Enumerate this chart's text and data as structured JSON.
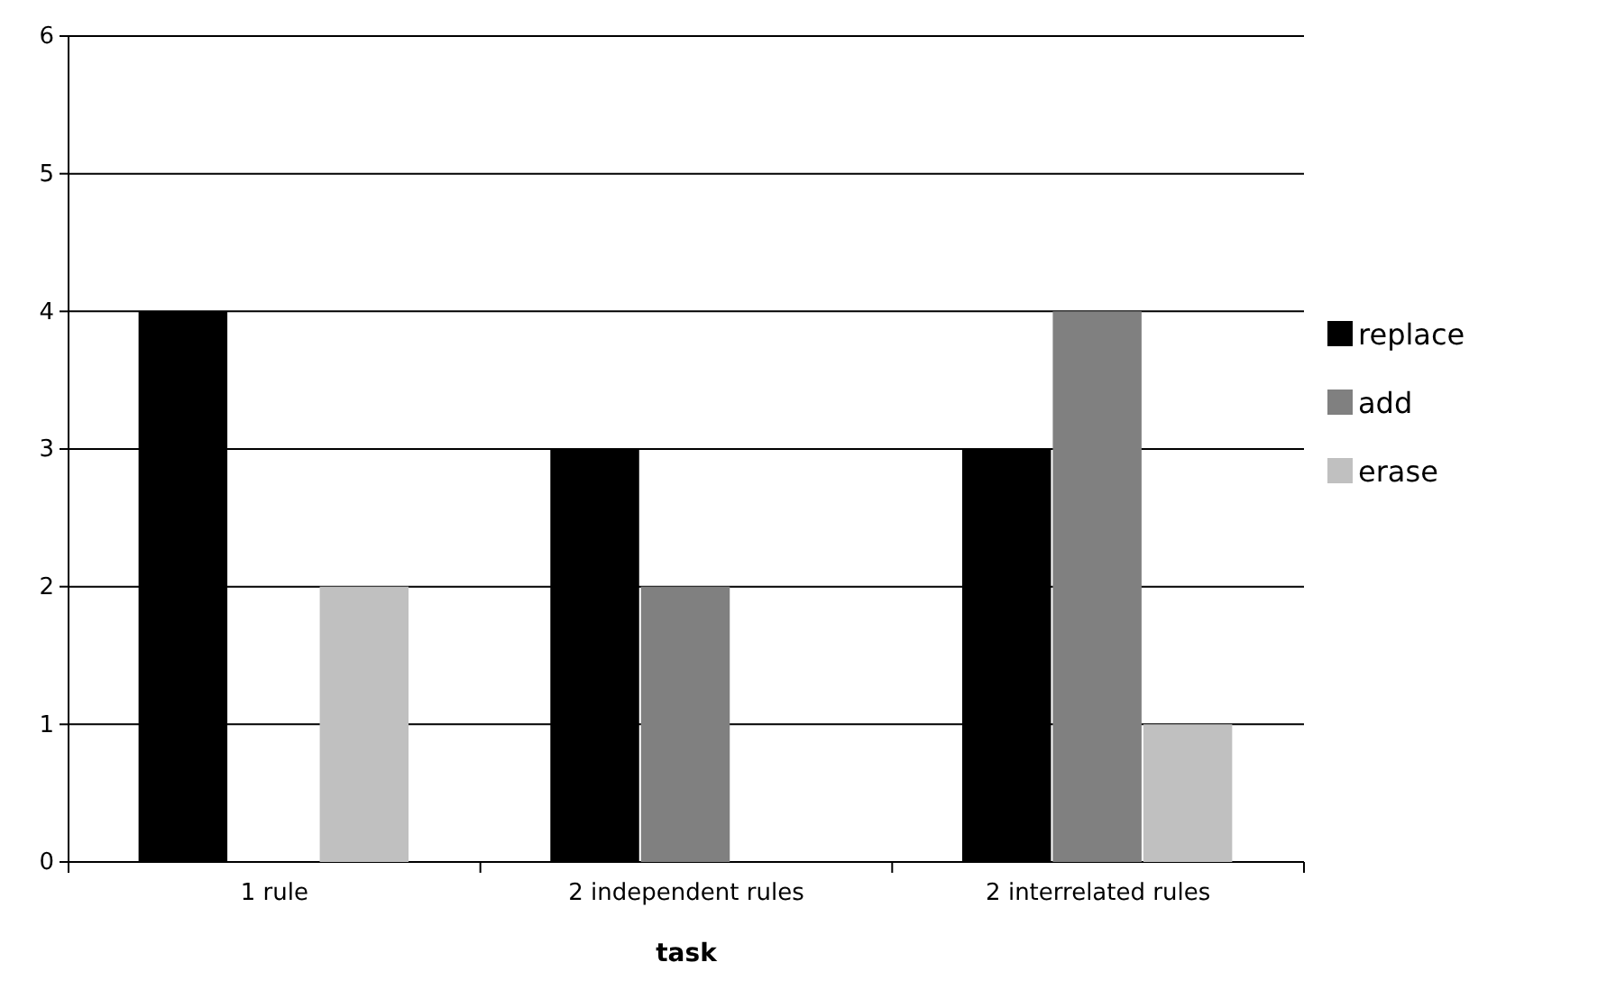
{
  "chart_data": {
    "type": "bar",
    "xlabel": "task",
    "categories": [
      "1 rule",
      "2 independent rules",
      "2 interrelated rules"
    ],
    "series": [
      {
        "name": "replace",
        "color": "#000000",
        "values": [
          4,
          3,
          3
        ]
      },
      {
        "name": "add",
        "color": "#808080",
        "values": [
          0,
          2,
          4
        ]
      },
      {
        "name": "erase",
        "color": "#c0c0c0",
        "values": [
          2,
          0,
          1
        ]
      }
    ],
    "ylim": [
      0,
      6
    ],
    "yticks": [
      0,
      1,
      2,
      3,
      4,
      5,
      6
    ],
    "grid": "y",
    "legend": "right"
  }
}
